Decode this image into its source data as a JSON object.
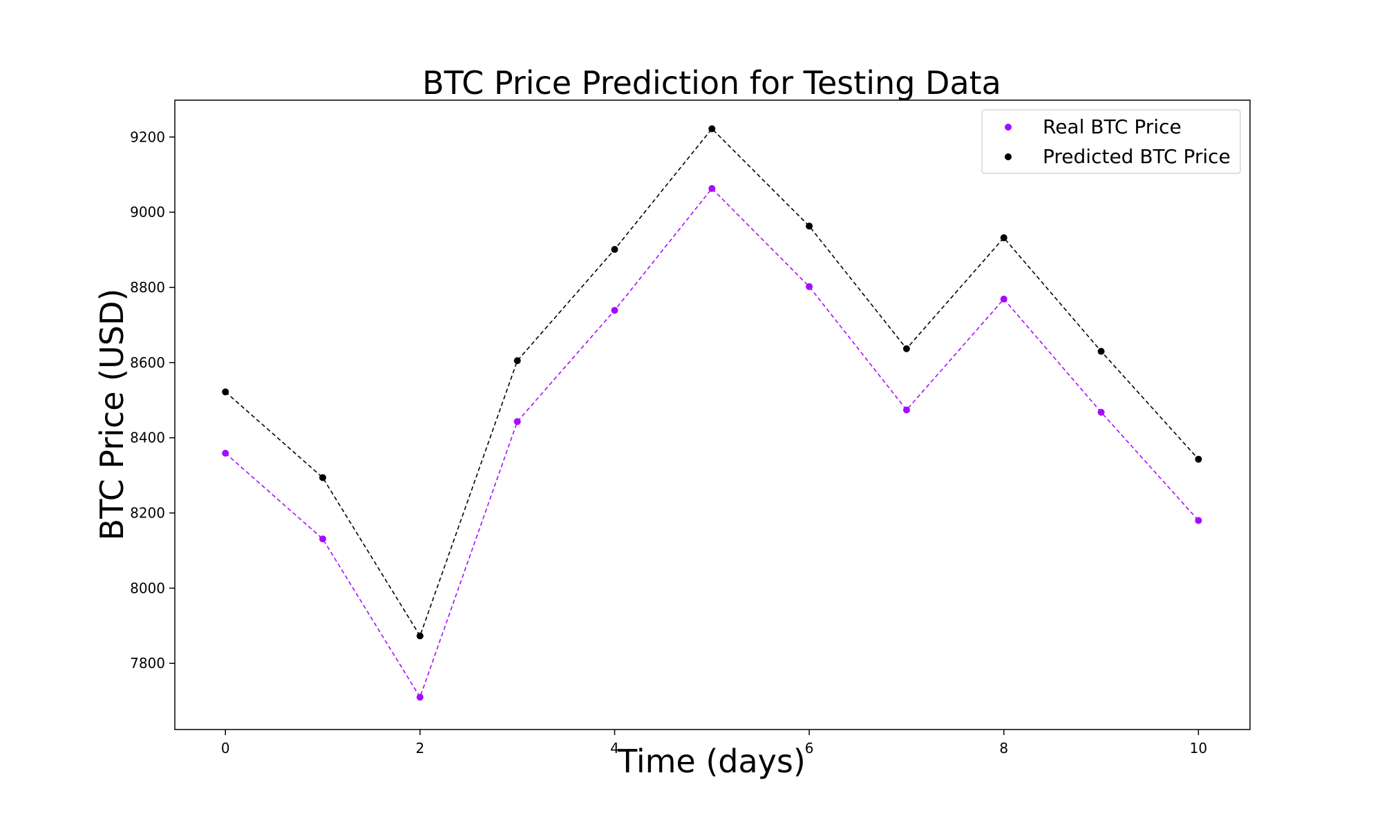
{
  "chart_data": {
    "type": "line",
    "title": "BTC Price Prediction for Testing Data",
    "xlabel": "Time (days)",
    "ylabel": "BTC Price (USD)",
    "xlim": [
      -0.52,
      10.53
    ],
    "ylim": [
      7624,
      9298
    ],
    "xticks": [
      0,
      2,
      4,
      6,
      8,
      10
    ],
    "yticks": [
      7800,
      8000,
      8200,
      8400,
      8600,
      8800,
      9000,
      9200
    ],
    "grid": false,
    "legend_position": "top-right",
    "x": [
      0,
      1,
      2,
      3,
      4,
      5,
      6,
      7,
      8,
      9,
      10
    ],
    "series": [
      {
        "name": "Real BTC Price",
        "color": "#a50cff",
        "line_style": "dashed",
        "values": [
          8359,
          8131,
          7710,
          8443,
          8739,
          9063,
          8802,
          8474,
          8769,
          8468,
          8180
        ]
      },
      {
        "name": "Predicted BTC Price",
        "color": "#000000",
        "line_style": "dashed",
        "values": [
          8522,
          8294,
          7873,
          8605,
          8901,
          9222,
          8963,
          8637,
          8932,
          8630,
          8343
        ]
      }
    ]
  }
}
